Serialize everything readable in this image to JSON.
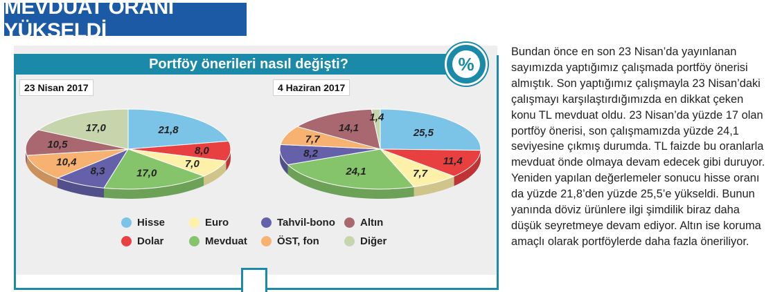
{
  "headline": "MEVDUAT ORANI YÜKSELDİ",
  "infographic": {
    "title": "Portföy önerileri nasıl değişti?",
    "badge": "%"
  },
  "chart_data": [
    {
      "type": "pie",
      "title": "23 Nisan 2017",
      "slices": [
        {
          "name": "Hisse",
          "value": 21.8,
          "label": "21,8",
          "color": "#7cc3e8"
        },
        {
          "name": "Dolar",
          "value": 8.0,
          "label": "8,0",
          "color": "#e84040"
        },
        {
          "name": "Euro",
          "value": 7.0,
          "label": "7,0",
          "color": "#fdf0a8"
        },
        {
          "name": "Mevduat",
          "value": 17.0,
          "label": "17,0",
          "color": "#85c46b"
        },
        {
          "name": "Tahvil-bono",
          "value": 8.3,
          "label": "8,3",
          "color": "#6461aa"
        },
        {
          "name": "ÖST, fon",
          "value": 10.4,
          "label": "10,4",
          "color": "#f7b170"
        },
        {
          "name": "Altın",
          "value": 10.5,
          "label": "10,5",
          "color": "#a9686f"
        },
        {
          "name": "Diğer",
          "value": 17.0,
          "label": "17,0",
          "color": "#c7d5ad"
        }
      ]
    },
    {
      "type": "pie",
      "title": "4 Haziran 2017",
      "slices": [
        {
          "name": "Hisse",
          "value": 25.5,
          "label": "25,5",
          "color": "#7cc3e8"
        },
        {
          "name": "Dolar",
          "value": 11.4,
          "label": "11,4",
          "color": "#e84040"
        },
        {
          "name": "Euro",
          "value": 7.7,
          "label": "7,7",
          "color": "#fdf0a8"
        },
        {
          "name": "Mevduat",
          "value": 24.1,
          "label": "24,1",
          "color": "#85c46b"
        },
        {
          "name": "Tahvil-bono",
          "value": 8.2,
          "label": "8,2",
          "color": "#6461aa"
        },
        {
          "name": "ÖST, fon",
          "value": 7.7,
          "label": "7,7",
          "color": "#f7b170"
        },
        {
          "name": "Altın",
          "value": 14.1,
          "label": "14,1",
          "color": "#a9686f"
        },
        {
          "name": "Diğer",
          "value": 1.4,
          "label": "1,4",
          "color": "#c7d5ad"
        }
      ]
    }
  ],
  "legend": [
    {
      "name": "Hisse",
      "color": "#7cc3e8"
    },
    {
      "name": "Euro",
      "color": "#fdf0a8"
    },
    {
      "name": "Tahvil-bono",
      "color": "#6461aa"
    },
    {
      "name": "Altın",
      "color": "#a9686f"
    },
    {
      "name": "Dolar",
      "color": "#e84040"
    },
    {
      "name": "Mevduat",
      "color": "#85c46b"
    },
    {
      "name": "ÖST, fon",
      "color": "#f7b170"
    },
    {
      "name": "Diğer",
      "color": "#c7d5ad"
    }
  ],
  "article": {
    "text": "Bundan önce en son 23 Nisan’da yayınlanan sayımızda yaptığımız çalışmada portföy önerisi almıştık. Son yaptığımız çalışmayla 23 Nisan’daki çalışmayı karşılaştırdığımızda en dikkat çeken konu TL mevduat oldu. 23 Nisan’da yüzde 17 olan portföy önerisi, son çalışmamızda yüzde 24,1 seviyesine çıkmış durumda. TL faizde bu oranlarla mevduat önde olmaya devam edecek gibi duruyor. Yeniden yapılan değerlemeler sonucu hisse oranı da yüzde 21,8’den yüzde 25,5’e yükseldi. Bunun yanında döviz ürünlere ilgi şimdilik biraz daha düşük seyretmeye devam ediyor. Altın ise koruma amaçlı olarak portföylerde daha fazla öneriliyor."
  }
}
